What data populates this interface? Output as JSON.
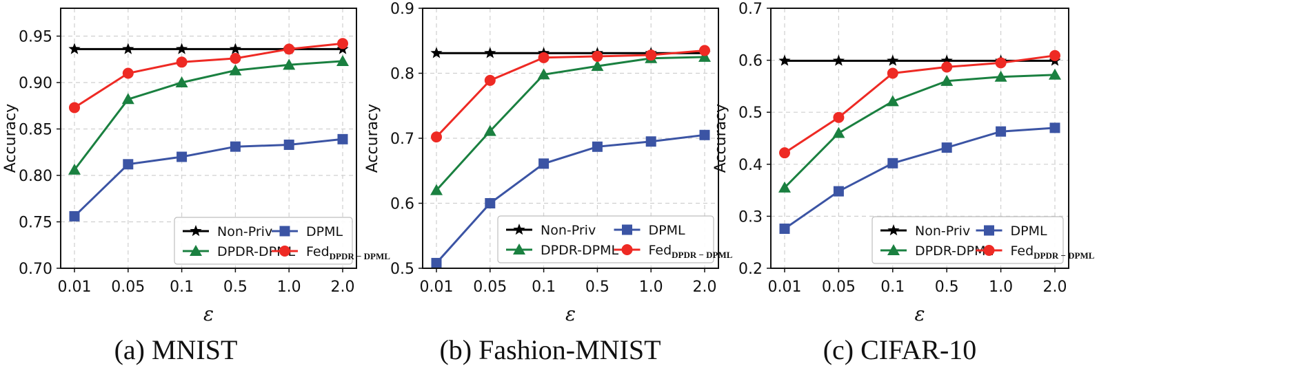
{
  "chart_data": [
    {
      "type": "line",
      "caption": "(a) MNIST",
      "ylabel": "Accuracy",
      "xlabel": "ε",
      "categories": [
        "0.01",
        "0.05",
        "0.1",
        "0.5",
        "1.0",
        "2.0"
      ],
      "ylim": [
        0.7,
        0.98
      ],
      "yticks": [
        "0.70",
        "0.75",
        "0.80",
        "0.85",
        "0.90",
        "0.95"
      ],
      "grid": true,
      "legend": "lower-right",
      "series": [
        {
          "name": "Non-Priv",
          "color": "#000000",
          "marker": "star",
          "values": [
            0.936,
            0.936,
            0.936,
            0.936,
            0.936,
            0.936
          ]
        },
        {
          "name": "DPML",
          "color": "#3b54a4",
          "marker": "square",
          "values": [
            0.756,
            0.812,
            0.82,
            0.831,
            0.833,
            0.839
          ]
        },
        {
          "name": "DPDR-DPML",
          "color": "#1a8040",
          "marker": "triangle",
          "values": [
            0.806,
            0.882,
            0.9,
            0.913,
            0.919,
            0.923
          ]
        },
        {
          "name": "Fed",
          "subscript": "DPDR − DPML",
          "color": "#ee2a24",
          "marker": "circle",
          "values": [
            0.873,
            0.91,
            0.922,
            0.926,
            0.936,
            0.942
          ]
        }
      ]
    },
    {
      "type": "line",
      "caption": "(b) Fashion-MNIST",
      "ylabel": "Accuracy",
      "xlabel": "ε",
      "categories": [
        "0.01",
        "0.05",
        "0.1",
        "0.5",
        "1.0",
        "2.0"
      ],
      "ylim": [
        0.5,
        0.9
      ],
      "yticks": [
        "0.5",
        "0.6",
        "0.7",
        "0.8",
        "0.9"
      ],
      "grid": true,
      "legend": "lower-right",
      "series": [
        {
          "name": "Non-Priv",
          "color": "#000000",
          "marker": "star",
          "values": [
            0.831,
            0.831,
            0.831,
            0.831,
            0.831,
            0.831
          ]
        },
        {
          "name": "DPML",
          "color": "#3b54a4",
          "marker": "square",
          "values": [
            0.508,
            0.6,
            0.661,
            0.687,
            0.695,
            0.705
          ]
        },
        {
          "name": "DPDR-DPML",
          "color": "#1a8040",
          "marker": "triangle",
          "values": [
            0.62,
            0.711,
            0.798,
            0.811,
            0.823,
            0.825
          ]
        },
        {
          "name": "Fed",
          "subscript": "DPDR − DPML",
          "color": "#ee2a24",
          "marker": "circle",
          "values": [
            0.702,
            0.789,
            0.824,
            0.826,
            0.828,
            0.835
          ]
        }
      ]
    },
    {
      "type": "line",
      "caption": "(c) CIFAR-10",
      "ylabel": "Accuracy",
      "xlabel": "ε",
      "categories": [
        "0.01",
        "0.05",
        "0.1",
        "0.5",
        "1.0",
        "2.0"
      ],
      "ylim": [
        0.2,
        0.7
      ],
      "yticks": [
        "0.2",
        "0.3",
        "0.4",
        "0.5",
        "0.6",
        "0.7"
      ],
      "grid": true,
      "legend": "lower-right",
      "series": [
        {
          "name": "Non-Priv",
          "color": "#000000",
          "marker": "star",
          "values": [
            0.599,
            0.599,
            0.599,
            0.599,
            0.599,
            0.599
          ]
        },
        {
          "name": "DPML",
          "color": "#3b54a4",
          "marker": "square",
          "values": [
            0.276,
            0.348,
            0.402,
            0.432,
            0.463,
            0.47
          ]
        },
        {
          "name": "DPDR-DPML",
          "color": "#1a8040",
          "marker": "triangle",
          "values": [
            0.355,
            0.46,
            0.521,
            0.56,
            0.568,
            0.572
          ]
        },
        {
          "name": "Fed",
          "subscript": "DPDR − DPML",
          "color": "#ee2a24",
          "marker": "circle",
          "values": [
            0.422,
            0.49,
            0.575,
            0.587,
            0.595,
            0.609
          ]
        }
      ]
    }
  ]
}
